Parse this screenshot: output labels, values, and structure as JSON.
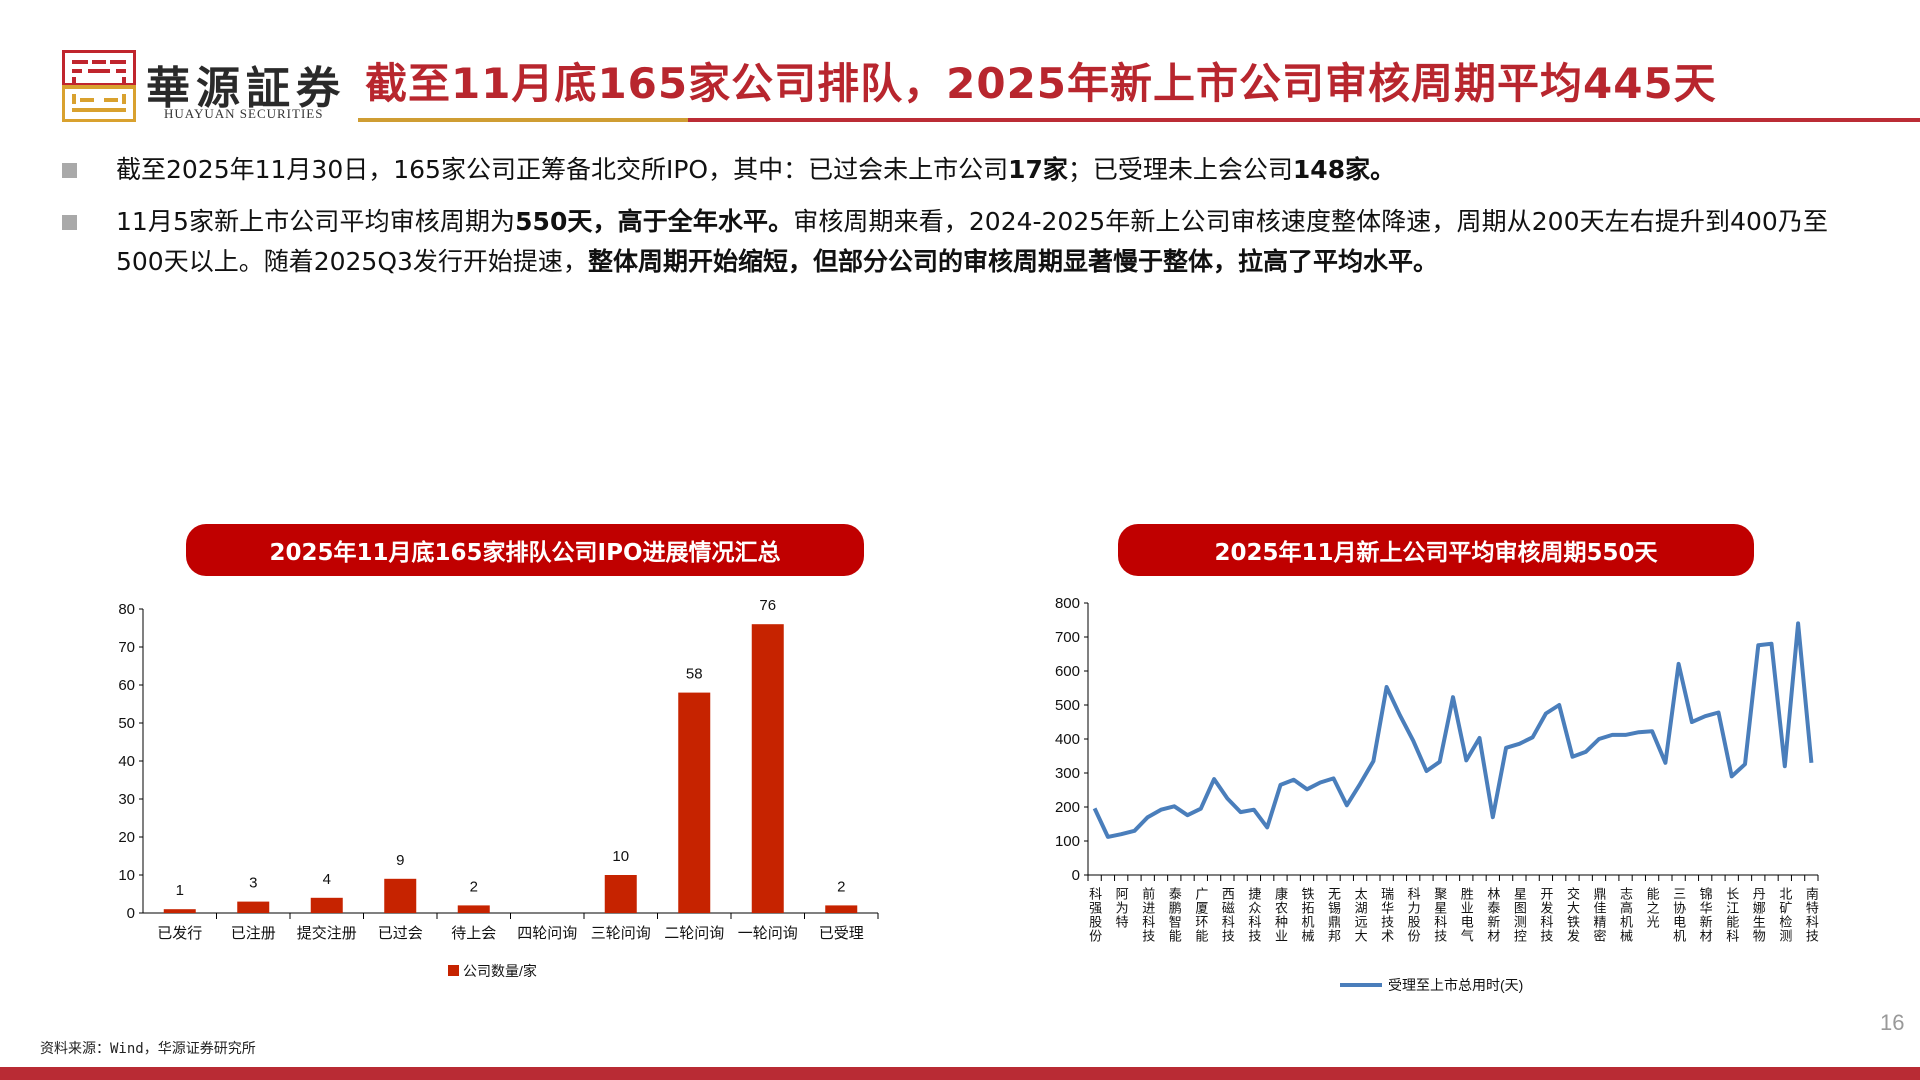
{
  "header": {
    "logo_cn": "華源証券",
    "logo_en": "HUAYUAN SECURITIES",
    "title": "截至11月底165家公司排队，2025年新上市公司审核周期平均445天"
  },
  "colors": {
    "title_red": "#b8262e",
    "rule_gold": "#cf9d33",
    "rule_red": "#bb2c35",
    "pill_red": "#c00000",
    "bar_red": "#c62300",
    "line_blue": "#4a7ebb",
    "bullet_gray": "#a9a9a9"
  },
  "bullets": [
    {
      "segments": [
        {
          "text": "截至2025年11月30日，165家公司正筹备北交所IPO，其中：已过会未上市公司",
          "bold": false
        },
        {
          "text": "17家",
          "bold": true
        },
        {
          "text": "；已受理未上会公司",
          "bold": false
        },
        {
          "text": "148家。",
          "bold": true
        }
      ]
    },
    {
      "segments": [
        {
          "text": "11月5家新上市公司平均审核周期为",
          "bold": false
        },
        {
          "text": "550天，高于全年水平。",
          "bold": true
        },
        {
          "text": "审核周期来看，2024-2025年新上公司审核速度整体降速，周期从200天左右提升到400乃至500天以上。随着2025Q3发行开始提速，",
          "bold": false
        },
        {
          "text": "整体周期开始缩短，但部分公司的审核周期显著慢于整体，拉高了平均水平。",
          "bold": true
        }
      ]
    }
  ],
  "chart_data": [
    {
      "type": "bar",
      "title": "2025年11月底165家排队公司IPO进展情况汇总",
      "categories": [
        "已发行",
        "已注册",
        "提交注册",
        "已过会",
        "待上会",
        "四轮问询",
        "三轮问询",
        "二轮问询",
        "一轮问询",
        "已受理"
      ],
      "series": [
        {
          "name": "公司数量/家",
          "values": [
            1,
            3,
            4,
            9,
            2,
            0,
            10,
            58,
            76,
            2
          ],
          "color": "#c62300"
        }
      ],
      "data_labels": [
        "1",
        "3",
        "4",
        "9",
        "2",
        "",
        "10",
        "58",
        "76",
        "2"
      ],
      "yticks": [
        "0",
        "10",
        "20",
        "30",
        "40",
        "50",
        "60",
        "70",
        "80"
      ],
      "ylim": [
        0,
        80
      ],
      "xlabel": "",
      "ylabel": "",
      "grid": false,
      "legend_position": "bottom"
    },
    {
      "type": "line",
      "title": "2025年11月新上公司平均审核周期550天",
      "x_labels_shown": [
        "科强股份",
        "阿为特",
        "前进科技",
        "泰鹏智能",
        "广厦环能",
        "西磁科技",
        "捷众科技",
        "康农种业",
        "铁拓机械",
        "无锡鼎邦",
        "太湖远大",
        "瑞华技术",
        "科力股份",
        "聚星科技",
        "胜业电气",
        "林泰新材",
        "星图测控",
        "开发科技",
        "交大铁发",
        "鼎佳精密",
        "志高机械",
        "能之光",
        "三协电机",
        "锦华新材",
        "长江能科",
        "丹娜生物",
        "北矿检测",
        "南特科技"
      ],
      "series": [
        {
          "name": "受理至上市总用时(天)",
          "color": "#4a7ebb",
          "values": [
            196,
            112,
            120,
            130,
            170,
            192,
            202,
            176,
            195,
            282,
            225,
            185,
            192,
            140,
            265,
            280,
            252,
            272,
            284,
            205,
            268,
            335,
            553,
            470,
            395,
            306,
            333,
            523,
            337,
            403,
            170,
            374,
            386,
            405,
            475,
            500,
            348,
            362,
            400,
            412,
            412,
            420,
            423,
            330,
            621,
            450,
            467,
            478,
            290,
            326,
            676,
            680,
            320,
            740,
            330
          ]
        }
      ],
      "yticks": [
        "0",
        "100",
        "200",
        "300",
        "400",
        "500",
        "600",
        "700",
        "800"
      ],
      "ylim": [
        0,
        800
      ],
      "grid": false,
      "legend_position": "bottom"
    }
  ],
  "footer": {
    "source": "资料来源：Wind，华源证券研究所",
    "page_number": "16"
  }
}
